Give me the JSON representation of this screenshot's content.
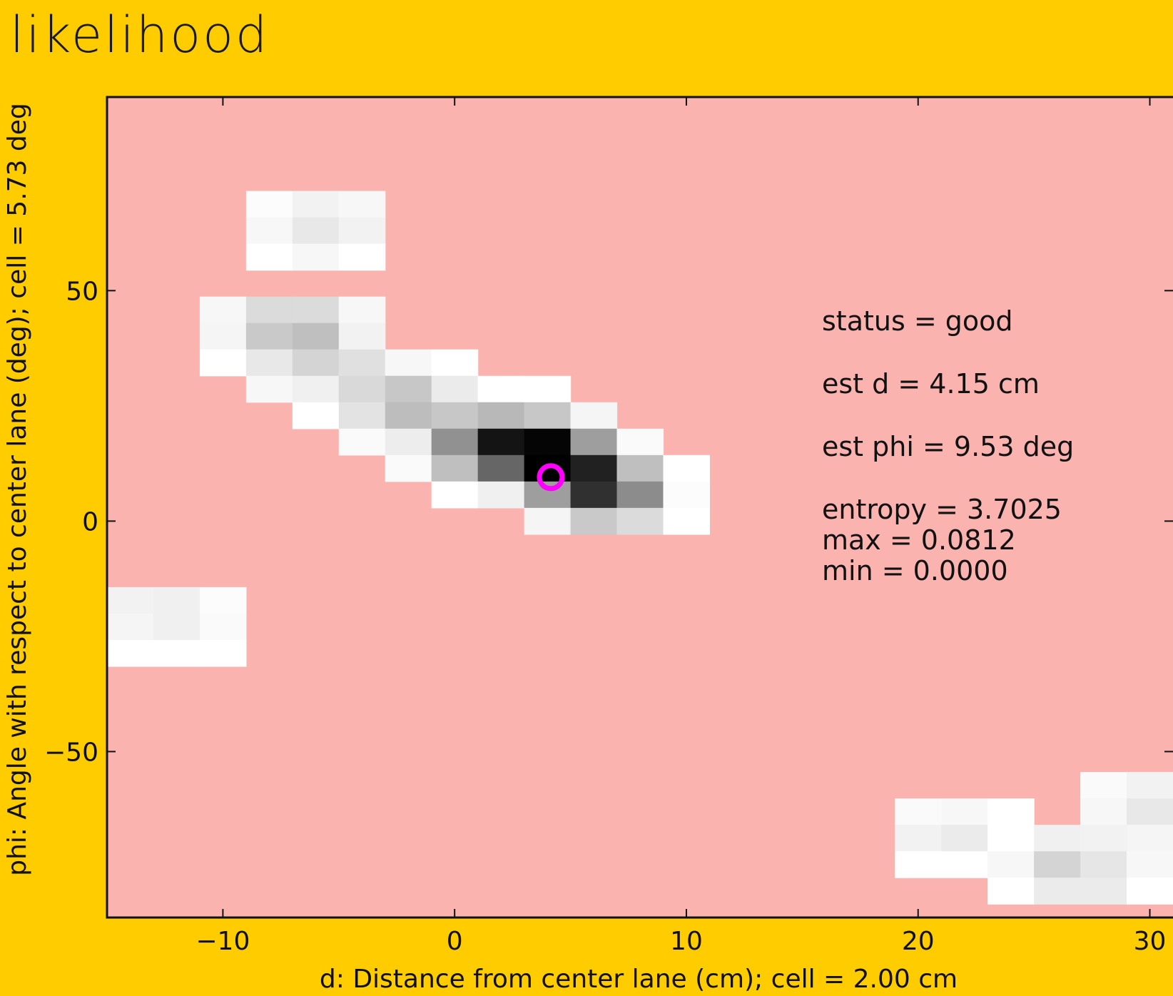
{
  "title": "likelihood",
  "chart_data": {
    "type": "heatmap",
    "xlabel": "d: Distance from center lane (cm); cell = 2.00 cm",
    "ylabel": "phi: Angle with respect to center lane (deg); cell = 5.73 deg",
    "xlim": [
      -15,
      31
    ],
    "ylim": [
      -86,
      92
    ],
    "xticks": [
      -10,
      0,
      10,
      20,
      30
    ],
    "yticks": [
      -50,
      0,
      50
    ],
    "xtick_labels": [
      "−10",
      "0",
      "10",
      "20",
      "30"
    ],
    "ytick_labels": [
      "−50",
      "0",
      "50"
    ],
    "background_color": "#FBB3AF",
    "grid": false,
    "cell": {
      "d_width": 2.0,
      "phi_height": 5.73
    },
    "cells": [
      {
        "d": -8,
        "phi": 68.76,
        "v": 0.01
      },
      {
        "d": -6,
        "phi": 68.76,
        "v": 0.05
      },
      {
        "d": -4,
        "phi": 68.76,
        "v": 0.03
      },
      {
        "d": -8,
        "phi": 63.03,
        "v": 0.03
      },
      {
        "d": -6,
        "phi": 63.03,
        "v": 0.09
      },
      {
        "d": -4,
        "phi": 63.03,
        "v": 0.05
      },
      {
        "d": -8,
        "phi": 57.3,
        "v": 0.0
      },
      {
        "d": -6,
        "phi": 57.3,
        "v": 0.03
      },
      {
        "d": -4,
        "phi": 57.3,
        "v": 0.0
      },
      {
        "d": -10,
        "phi": 45.84,
        "v": 0.03
      },
      {
        "d": -8,
        "phi": 45.84,
        "v": 0.14
      },
      {
        "d": -6,
        "phi": 45.84,
        "v": 0.14
      },
      {
        "d": -4,
        "phi": 45.84,
        "v": 0.03
      },
      {
        "d": -10,
        "phi": 40.11,
        "v": 0.04
      },
      {
        "d": -8,
        "phi": 40.11,
        "v": 0.21
      },
      {
        "d": -6,
        "phi": 40.11,
        "v": 0.25
      },
      {
        "d": -4,
        "phi": 40.11,
        "v": 0.05
      },
      {
        "d": -10,
        "phi": 34.38,
        "v": 0.0
      },
      {
        "d": -8,
        "phi": 34.38,
        "v": 0.09
      },
      {
        "d": -6,
        "phi": 34.38,
        "v": 0.17
      },
      {
        "d": -4,
        "phi": 34.38,
        "v": 0.12
      },
      {
        "d": -2,
        "phi": 34.38,
        "v": 0.03
      },
      {
        "d": 0,
        "phi": 34.38,
        "v": 0.0
      },
      {
        "d": -8,
        "phi": 28.65,
        "v": 0.03
      },
      {
        "d": -6,
        "phi": 28.65,
        "v": 0.06
      },
      {
        "d": -4,
        "phi": 28.65,
        "v": 0.15
      },
      {
        "d": -2,
        "phi": 28.65,
        "v": 0.22
      },
      {
        "d": 0,
        "phi": 28.65,
        "v": 0.08
      },
      {
        "d": 2,
        "phi": 28.65,
        "v": 0.0
      },
      {
        "d": 4,
        "phi": 28.65,
        "v": 0.0
      },
      {
        "d": -6,
        "phi": 22.92,
        "v": 0.0
      },
      {
        "d": -4,
        "phi": 22.92,
        "v": 0.11
      },
      {
        "d": -2,
        "phi": 22.92,
        "v": 0.26
      },
      {
        "d": 0,
        "phi": 22.92,
        "v": 0.22
      },
      {
        "d": 2,
        "phi": 22.92,
        "v": 0.28
      },
      {
        "d": 4,
        "phi": 22.92,
        "v": 0.22
      },
      {
        "d": 6,
        "phi": 22.92,
        "v": 0.04
      },
      {
        "d": -4,
        "phi": 17.19,
        "v": 0.02
      },
      {
        "d": -2,
        "phi": 17.19,
        "v": 0.07
      },
      {
        "d": 0,
        "phi": 17.19,
        "v": 0.43
      },
      {
        "d": 2,
        "phi": 17.19,
        "v": 0.92
      },
      {
        "d": 4,
        "phi": 17.19,
        "v": 0.98
      },
      {
        "d": 6,
        "phi": 17.19,
        "v": 0.38
      },
      {
        "d": 8,
        "phi": 17.19,
        "v": 0.02
      },
      {
        "d": -2,
        "phi": 11.46,
        "v": 0.02
      },
      {
        "d": 0,
        "phi": 11.46,
        "v": 0.25
      },
      {
        "d": 2,
        "phi": 11.46,
        "v": 0.6
      },
      {
        "d": 4,
        "phi": 11.46,
        "v": 1.0
      },
      {
        "d": 6,
        "phi": 11.46,
        "v": 0.87
      },
      {
        "d": 8,
        "phi": 11.46,
        "v": 0.25
      },
      {
        "d": 10,
        "phi": 11.46,
        "v": 0.0
      },
      {
        "d": 0,
        "phi": 5.73,
        "v": 0.0
      },
      {
        "d": 2,
        "phi": 5.73,
        "v": 0.06
      },
      {
        "d": 4,
        "phi": 5.73,
        "v": 0.38
      },
      {
        "d": 6,
        "phi": 5.73,
        "v": 0.81
      },
      {
        "d": 8,
        "phi": 5.73,
        "v": 0.45
      },
      {
        "d": 10,
        "phi": 5.73,
        "v": 0.01
      },
      {
        "d": 4,
        "phi": 0.0,
        "v": 0.04
      },
      {
        "d": 6,
        "phi": 0.0,
        "v": 0.21
      },
      {
        "d": 8,
        "phi": 0.0,
        "v": 0.14
      },
      {
        "d": 10,
        "phi": 0.0,
        "v": 0.0
      },
      {
        "d": -14,
        "phi": -17.19,
        "v": 0.05
      },
      {
        "d": -12,
        "phi": -17.19,
        "v": 0.06
      },
      {
        "d": -10,
        "phi": -17.19,
        "v": 0.01
      },
      {
        "d": -14,
        "phi": -22.92,
        "v": 0.04
      },
      {
        "d": -12,
        "phi": -22.92,
        "v": 0.06
      },
      {
        "d": -10,
        "phi": -22.92,
        "v": 0.02
      },
      {
        "d": -14,
        "phi": -28.65,
        "v": 0.0
      },
      {
        "d": -12,
        "phi": -28.65,
        "v": 0.0
      },
      {
        "d": -10,
        "phi": -28.65,
        "v": 0.0
      },
      {
        "d": 28,
        "phi": -57.3,
        "v": 0.02
      },
      {
        "d": 30,
        "phi": -57.3,
        "v": 0.05
      },
      {
        "d": 20,
        "phi": -63.03,
        "v": 0.02
      },
      {
        "d": 22,
        "phi": -63.03,
        "v": 0.03
      },
      {
        "d": 24,
        "phi": -63.03,
        "v": 0.0
      },
      {
        "d": 28,
        "phi": -63.03,
        "v": 0.03
      },
      {
        "d": 30,
        "phi": -63.03,
        "v": 0.09
      },
      {
        "d": 20,
        "phi": -68.76,
        "v": 0.05
      },
      {
        "d": 22,
        "phi": -68.76,
        "v": 0.08
      },
      {
        "d": 24,
        "phi": -68.76,
        "v": 0.0
      },
      {
        "d": 26,
        "phi": -68.76,
        "v": 0.06
      },
      {
        "d": 28,
        "phi": -68.76,
        "v": 0.05
      },
      {
        "d": 30,
        "phi": -68.76,
        "v": 0.04
      },
      {
        "d": 20,
        "phi": -74.49,
        "v": 0.0
      },
      {
        "d": 22,
        "phi": -74.49,
        "v": 0.0
      },
      {
        "d": 24,
        "phi": -74.49,
        "v": 0.03
      },
      {
        "d": 26,
        "phi": -74.49,
        "v": 0.17
      },
      {
        "d": 28,
        "phi": -74.49,
        "v": 0.1
      },
      {
        "d": 30,
        "phi": -74.49,
        "v": 0.03
      },
      {
        "d": 24,
        "phi": -80.22,
        "v": 0.0
      },
      {
        "d": 26,
        "phi": -80.22,
        "v": 0.08
      },
      {
        "d": 28,
        "phi": -80.22,
        "v": 0.08
      },
      {
        "d": 30,
        "phi": -80.22,
        "v": 0.0
      }
    ],
    "estimate": {
      "d": 4.15,
      "phi": 9.53,
      "color": "#FF00FF"
    },
    "annotations": [
      "status = good",
      "est d = 4.15 cm",
      "est phi = 9.53 deg",
      "entropy = 3.7025",
      "max = 0.0812",
      "min = 0.0000"
    ]
  }
}
